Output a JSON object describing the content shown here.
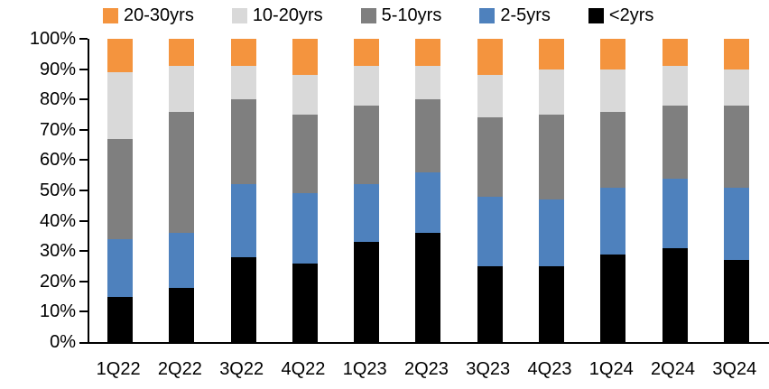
{
  "chart_data": {
    "type": "bar",
    "stacked": true,
    "percent_stacked": true,
    "title": "",
    "xlabel": "",
    "ylabel": "",
    "categories": [
      "1Q22",
      "2Q22",
      "3Q22",
      "4Q22",
      "1Q23",
      "2Q23",
      "3Q23",
      "4Q23",
      "1Q24",
      "2Q24",
      "3Q24"
    ],
    "series": [
      {
        "name": "<2yrs",
        "color": "#000000",
        "values": [
          15,
          18,
          28,
          26,
          33,
          36,
          25,
          25,
          29,
          31,
          27
        ]
      },
      {
        "name": "2-5yrs",
        "color": "#4E81BD",
        "values": [
          19,
          18,
          24,
          23,
          19,
          20,
          23,
          22,
          22,
          23,
          24
        ]
      },
      {
        "name": "5-10yrs",
        "color": "#7F7F7F",
        "values": [
          33,
          40,
          28,
          26,
          26,
          24,
          26,
          28,
          25,
          24,
          27
        ]
      },
      {
        "name": "10-20yrs",
        "color": "#D9D9D9",
        "values": [
          22,
          15,
          11,
          13,
          13,
          11,
          14,
          15,
          14,
          13,
          12
        ]
      },
      {
        "name": "20-30yrs",
        "color": "#F4943E",
        "values": [
          11,
          9,
          9,
          12,
          9,
          9,
          12,
          10,
          10,
          9,
          10
        ]
      }
    ],
    "legend_order": [
      "20-30yrs",
      "10-20yrs",
      "5-10yrs",
      "2-5yrs",
      "<2yrs"
    ],
    "legend_position": "top",
    "ylim": [
      0,
      100
    ],
    "y_tick_step": 10,
    "y_ticks": [
      "0%",
      "10%",
      "20%",
      "30%",
      "40%",
      "50%",
      "60%",
      "70%",
      "80%",
      "90%",
      "100%"
    ],
    "grid": false,
    "axis_color": "#000000",
    "background_color": "#FFFFFF"
  }
}
